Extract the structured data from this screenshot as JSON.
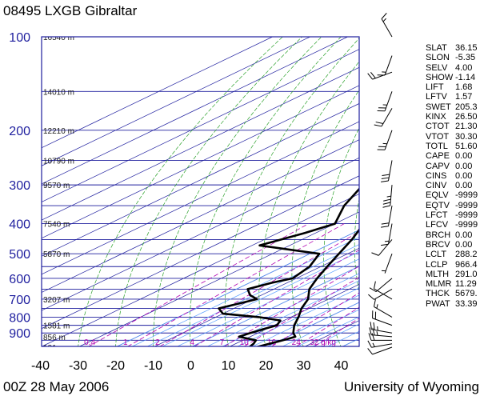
{
  "title": "08495 LXGB Gibraltar",
  "footer_left": "00Z 28 May 2006",
  "footer_right": "University of Wyoming",
  "colors": {
    "isobar": "#1e1e9e",
    "isotherm": "#1e1e9e",
    "dry_adiabat": "#2aa02a",
    "moist_adiabat": "#5aa0ff",
    "mixing_ratio": "#b000b0",
    "height_label": "#202020",
    "profile": "#000000"
  },
  "indices": [
    {
      "name": "SLAT",
      "value": "36.15"
    },
    {
      "name": "SLON",
      "value": "-5.35"
    },
    {
      "name": "SELV",
      "value": "4.00"
    },
    {
      "name": "SHOW",
      "value": "-1.14"
    },
    {
      "name": "LIFT",
      "value": "1.68"
    },
    {
      "name": "LFTV",
      "value": "1.57"
    },
    {
      "name": "SWET",
      "value": "205.3"
    },
    {
      "name": "KINX",
      "value": "26.50"
    },
    {
      "name": "CTOT",
      "value": "21.30"
    },
    {
      "name": "VTOT",
      "value": "30.30"
    },
    {
      "name": "TOTL",
      "value": "51.60"
    },
    {
      "name": "CAPE",
      "value": "0.00"
    },
    {
      "name": "CAPV",
      "value": "0.00"
    },
    {
      "name": "CINS",
      "value": "0.00"
    },
    {
      "name": "CINV",
      "value": "0.00"
    },
    {
      "name": "EQLV",
      "value": "-9999"
    },
    {
      "name": "EQTV",
      "value": "-9999"
    },
    {
      "name": "LFCT",
      "value": "-9999"
    },
    {
      "name": "LFCV",
      "value": "-9999"
    },
    {
      "name": "BRCH",
      "value": "0.00"
    },
    {
      "name": "BRCV",
      "value": "0.00"
    },
    {
      "name": "LCLT",
      "value": "288.2"
    },
    {
      "name": "LCLP",
      "value": "966.4"
    },
    {
      "name": "MLTH",
      "value": "291.0"
    },
    {
      "name": "MLMR",
      "value": "11.29"
    },
    {
      "name": "THCK",
      "value": "5679."
    },
    {
      "name": "PWAT",
      "value": "33.39"
    }
  ],
  "chart_data": {
    "type": "line",
    "skew_t": true,
    "y_scale": "log",
    "pressure_range_hpa": [
      1000,
      100
    ],
    "temperature_range_c": [
      -40,
      45
    ],
    "pressure_labels": [
      {
        "p": 100,
        "label": "100"
      },
      {
        "p": 200,
        "label": "200"
      },
      {
        "p": 300,
        "label": "300"
      },
      {
        "p": 400,
        "label": "400"
      },
      {
        "p": 500,
        "label": "500"
      },
      {
        "p": 600,
        "label": "600"
      },
      {
        "p": 700,
        "label": "700"
      },
      {
        "p": 800,
        "label": "800"
      },
      {
        "p": 900,
        "label": "900"
      }
    ],
    "isobars_hpa": [
      100,
      150,
      200,
      250,
      300,
      350,
      400,
      450,
      500,
      550,
      600,
      650,
      700,
      750,
      800,
      850,
      900,
      950,
      1000
    ],
    "temperature_ticks": [
      -40,
      -30,
      -20,
      -10,
      0,
      10,
      20,
      30,
      40
    ],
    "height_labels": [
      {
        "p": 100,
        "label": "16540 m"
      },
      {
        "p": 150,
        "label": "14010 m"
      },
      {
        "p": 200,
        "label": "12210 m"
      },
      {
        "p": 250,
        "label": "10790 m"
      },
      {
        "p": 300,
        "label": "9570 m"
      },
      {
        "p": 400,
        "label": "7540 m"
      },
      {
        "p": 500,
        "label": "5870 m"
      },
      {
        "p": 700,
        "label": "3207 m"
      },
      {
        "p": 850,
        "label": "1581 m"
      },
      {
        "p": 925,
        "label": "856 m"
      },
      {
        "p": 1000,
        "label": "181 m"
      }
    ],
    "mixing_ratio_labels": [
      "0.4",
      "1",
      "2",
      "4",
      "7",
      "10",
      "16",
      "24",
      "32 g/kg"
    ],
    "series": [
      {
        "points": [
          {
            "p": 1000,
            "t": 17.4
          },
          {
            "p": 980,
            "t": 18.6
          },
          {
            "p": 960,
            "t": 20.0
          },
          {
            "p": 940,
            "t": 21.2
          },
          {
            "p": 925,
            "t": 22.0
          },
          {
            "p": 900,
            "t": 19.4
          },
          {
            "p": 850,
            "t": 15.4
          },
          {
            "p": 800,
            "t": 12.0
          },
          {
            "p": 750,
            "t": 8.0
          },
          {
            "p": 700,
            "t": 4.6
          },
          {
            "p": 650,
            "t": -0.6
          },
          {
            "p": 600,
            "t": -4.5
          },
          {
            "p": 550,
            "t": -8.3
          },
          {
            "p": 500,
            "t": -12.3
          },
          {
            "p": 450,
            "t": -16.7
          },
          {
            "p": 400,
            "t": -22.3
          },
          {
            "p": 350,
            "t": -28.1
          },
          {
            "p": 300,
            "t": -35.1
          },
          {
            "p": 250,
            "t": -43.5
          },
          {
            "p": 200,
            "t": -51.5
          },
          {
            "p": 180,
            "t": -55.0
          },
          {
            "p": 150,
            "t": -61.5
          },
          {
            "p": 120,
            "t": -67.5
          },
          {
            "p": 100,
            "t": -71.0
          }
        ]
      },
      {
        "points": [
          {
            "p": 1000,
            "t": 15.5
          },
          {
            "p": 975,
            "t": 14.8
          },
          {
            "p": 950,
            "t": 13.5
          },
          {
            "p": 925,
            "t": 7.0
          },
          {
            "p": 900,
            "t": 8.0
          },
          {
            "p": 870,
            "t": 9.6
          },
          {
            "p": 850,
            "t": 10.8
          },
          {
            "p": 820,
            "t": 9.0
          },
          {
            "p": 800,
            "t": 1.5
          },
          {
            "p": 780,
            "t": -10.0
          },
          {
            "p": 750,
            "t": -14.0
          },
          {
            "p": 720,
            "t": -11.0
          },
          {
            "p": 700,
            "t": -9.0
          },
          {
            "p": 680,
            "t": -13.0
          },
          {
            "p": 650,
            "t": -17.0
          },
          {
            "p": 620,
            "t": -14.0
          },
          {
            "p": 600,
            "t": -11.0
          },
          {
            "p": 550,
            "t": -13.0
          },
          {
            "p": 500,
            "t": -17.5
          },
          {
            "p": 470,
            "t": -38.0
          },
          {
            "p": 430,
            "t": -33.0
          },
          {
            "p": 400,
            "t": -30.0
          },
          {
            "p": 350,
            "t": -37.5
          },
          {
            "p": 300,
            "t": -44.0
          },
          {
            "p": 250,
            "t": -50.0
          },
          {
            "p": 220,
            "t": -52.0
          },
          {
            "p": 200,
            "t": -51.0
          },
          {
            "p": 180,
            "t": -59.0
          },
          {
            "p": 160,
            "t": -65.0
          },
          {
            "p": 150,
            "t": -75.0
          },
          {
            "p": 130,
            "t": -77.0
          },
          {
            "p": 115,
            "t": -82.0
          },
          {
            "p": 100,
            "t": -85.0
          }
        ]
      }
    ],
    "wind_barbs": [
      {
        "p": 1000,
        "dir": 250,
        "kt": 10
      },
      {
        "p": 975,
        "dir": 260,
        "kt": 15
      },
      {
        "p": 950,
        "dir": 270,
        "kt": 20
      },
      {
        "p": 925,
        "dir": 275,
        "kt": 25
      },
      {
        "p": 900,
        "dir": 280,
        "kt": 25
      },
      {
        "p": 850,
        "dir": 290,
        "kt": 20
      },
      {
        "p": 800,
        "dir": 300,
        "kt": 15
      },
      {
        "p": 700,
        "dir": 300,
        "kt": 10
      },
      {
        "p": 650,
        "dir": 240,
        "kt": 10
      },
      {
        "p": 600,
        "dir": 230,
        "kt": 10
      },
      {
        "p": 500,
        "dir": 200,
        "kt": 5
      },
      {
        "p": 450,
        "dir": 220,
        "kt": 10
      },
      {
        "p": 400,
        "dir": 190,
        "kt": 15
      },
      {
        "p": 350,
        "dir": 190,
        "kt": 20
      },
      {
        "p": 300,
        "dir": 185,
        "kt": 35
      },
      {
        "p": 250,
        "dir": 190,
        "kt": 30
      },
      {
        "p": 200,
        "dir": 200,
        "kt": 25
      },
      {
        "p": 170,
        "dir": 210,
        "kt": 20
      },
      {
        "p": 150,
        "dir": 200,
        "kt": 25
      },
      {
        "p": 130,
        "dir": 250,
        "kt": 20
      },
      {
        "p": 115,
        "dir": 200,
        "kt": 15
      },
      {
        "p": 100,
        "dir": 330,
        "kt": 15
      }
    ]
  }
}
